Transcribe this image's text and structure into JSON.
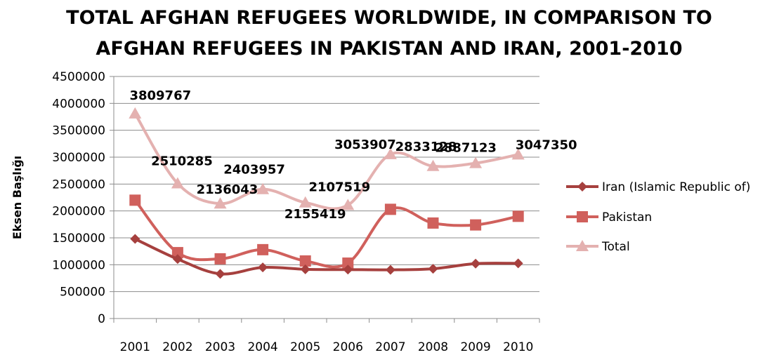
{
  "chart_data": {
    "type": "line",
    "title_lines": [
      "TOTAL AFGHAN REFUGEES WORLDWIDE, IN COMPARISON TO",
      "AFGHAN REFUGEES IN PAKISTAN AND IRAN, 2001-2010"
    ],
    "xlabel": "",
    "ylabel": "Eksen Başlığı",
    "categories": [
      "2001",
      "2002",
      "2003",
      "2004",
      "2005",
      "2006",
      "2007",
      "2008",
      "2009",
      "2010"
    ],
    "ylim": [
      0,
      4500000
    ],
    "ytick_step": 500000,
    "y_tick_labels": [
      "0",
      "500000",
      "1000000",
      "1500000",
      "2000000",
      "2500000",
      "3000000",
      "3500000",
      "4000000",
      "4500000"
    ],
    "grid": true,
    "legend_position": "right",
    "series": [
      {
        "name": "Iran (Islamic Republic of)",
        "color": "#a6403e",
        "marker": "diamond",
        "values": [
          1480000,
          1105000,
          830000,
          950000,
          915000,
          910000,
          905000,
          925000,
          1020000,
          1025000
        ]
      },
      {
        "name": "Pakistan",
        "color": "#d0605c",
        "marker": "square",
        "values": [
          2200000,
          1225000,
          1110000,
          1280000,
          1070000,
          1030000,
          2030000,
          1775000,
          1740000,
          1900000
        ]
      },
      {
        "name": "Total",
        "color": "#e4b1b0",
        "marker": "triangle",
        "values": [
          3809767,
          2510285,
          2136043,
          2403957,
          2155419,
          2107519,
          3053907,
          2833128,
          2887123,
          3047350
        ]
      }
    ],
    "data_labels": {
      "series": "Total",
      "texts": [
        "3809767",
        "2510285",
        "2136043",
        "2403957",
        "2155419",
        "2107519",
        "3053907",
        "2833128",
        "2887123",
        "3047350"
      ]
    }
  }
}
